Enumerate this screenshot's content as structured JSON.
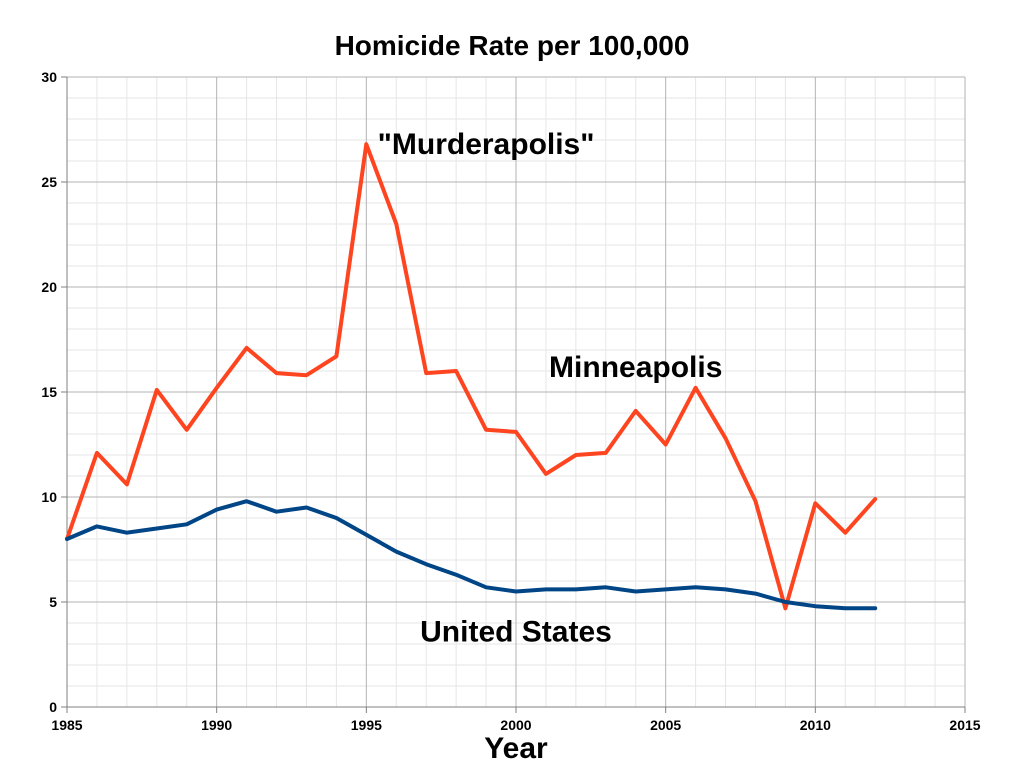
{
  "chart_data": {
    "type": "line",
    "title": "Homicide Rate per 100,000",
    "xlabel": "Year",
    "ylabel": "",
    "xlim": [
      1985,
      2015
    ],
    "ylim": [
      0,
      30
    ],
    "x_ticks": [
      1985,
      1990,
      1995,
      2000,
      2005,
      2010,
      2015
    ],
    "y_ticks": [
      0,
      5,
      10,
      15,
      20,
      25,
      30
    ],
    "x_tick_labels": [
      "1985",
      "1990",
      "1995",
      "2000",
      "2005",
      "2010",
      "2015"
    ],
    "y_tick_labels": [
      "0",
      "5",
      "10",
      "15",
      "20",
      "25",
      "30"
    ],
    "grid": true,
    "minor_grid": true,
    "x": [
      1985,
      1986,
      1987,
      1988,
      1989,
      1990,
      1991,
      1992,
      1993,
      1994,
      1995,
      1996,
      1997,
      1998,
      1999,
      2000,
      2001,
      2002,
      2003,
      2004,
      2005,
      2006,
      2007,
      2008,
      2009,
      2010,
      2011,
      2012
    ],
    "series": [
      {
        "name": "Minneapolis",
        "color": "#ff4420",
        "values": [
          8.0,
          12.1,
          10.6,
          15.1,
          13.2,
          15.2,
          17.1,
          15.9,
          15.8,
          16.7,
          26.8,
          23.0,
          15.9,
          16.0,
          13.2,
          13.1,
          11.1,
          12.0,
          12.1,
          14.1,
          12.5,
          15.2,
          12.8,
          9.8,
          4.7,
          9.7,
          8.3,
          9.9
        ]
      },
      {
        "name": "United States",
        "color": "#004586",
        "values": [
          8.0,
          8.6,
          8.3,
          8.5,
          8.7,
          9.4,
          9.8,
          9.3,
          9.5,
          9.0,
          8.2,
          7.4,
          6.8,
          6.3,
          5.7,
          5.5,
          5.6,
          5.6,
          5.7,
          5.5,
          5.6,
          5.7,
          5.6,
          5.4,
          5.0,
          4.8,
          4.7,
          4.7
        ]
      }
    ],
    "annotations": [
      {
        "text": "\"Murderapolis\"",
        "x": 1999.0,
        "y": 26.8
      },
      {
        "text": "Minneapolis",
        "x": 2004.0,
        "y": 16.2
      },
      {
        "text": "United States",
        "x": 2000.0,
        "y": 3.6
      }
    ]
  }
}
